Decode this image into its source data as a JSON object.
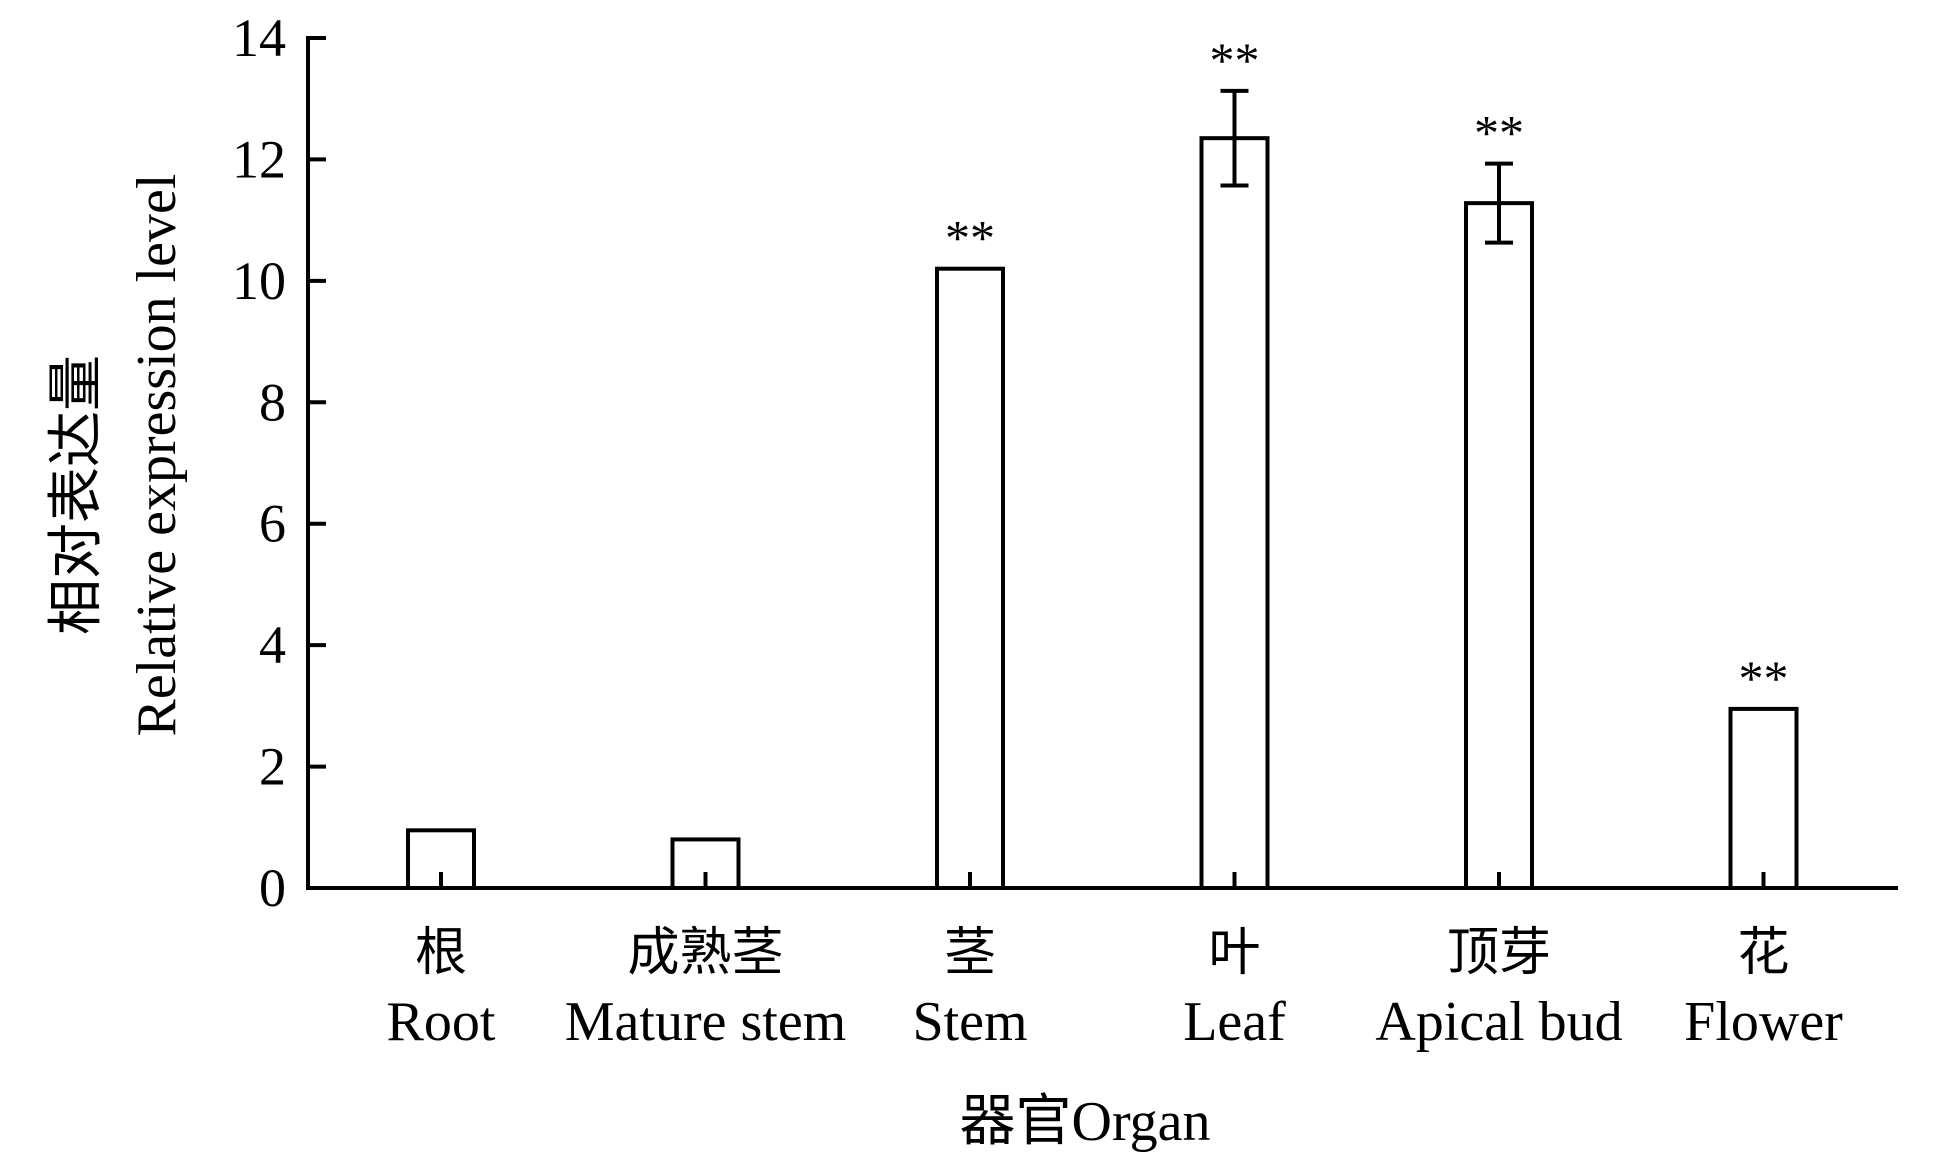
{
  "chart_data": {
    "type": "bar",
    "categories_cn": [
      "根",
      "成熟茎",
      "茎",
      "叶",
      "顶芽",
      "花"
    ],
    "categories": [
      "Root",
      "Mature stem",
      "Stem",
      "Leaf",
      "Apical bud",
      "Flower"
    ],
    "values": [
      0.95,
      0.8,
      10.2,
      12.35,
      11.28,
      2.95
    ],
    "error": [
      0,
      0,
      0,
      0.78,
      0.65,
      0
    ],
    "significance": [
      "",
      "",
      "**",
      "**",
      "**",
      "**"
    ],
    "ylabel_cn": "相对表达量",
    "ylabel": "Relative expression level",
    "xlabel": "器官Organ",
    "ylim": [
      0,
      14
    ],
    "yticks": [
      0,
      2,
      4,
      6,
      8,
      10,
      12,
      14
    ],
    "grid": false,
    "bar_fill": "#ffffff",
    "bar_stroke": "#000000"
  }
}
